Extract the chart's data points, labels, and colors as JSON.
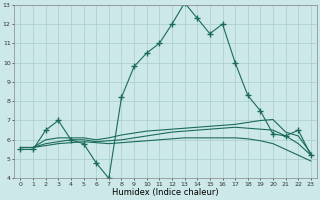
{
  "bg_color": "#cce8e8",
  "grid_color": "#aacccc",
  "line_color": "#1a6b5a",
  "marker": "+",
  "markersize": 4,
  "curve1_x": [
    0,
    1,
    2,
    3,
    4,
    5,
    6,
    7,
    8,
    9,
    10,
    11,
    12,
    13,
    14,
    15,
    16,
    17,
    18,
    19,
    20,
    21,
    22,
    23
  ],
  "curve1_y": [
    5.5,
    5.5,
    6.5,
    7.0,
    6.0,
    5.8,
    4.8,
    4.0,
    8.2,
    9.8,
    10.5,
    11.0,
    12.0,
    13.1,
    12.3,
    11.5,
    12.0,
    10.0,
    8.3,
    7.5,
    6.3,
    6.2,
    6.5,
    5.2
  ],
  "curve2_x": [
    0,
    1,
    2,
    3,
    4,
    5,
    6,
    7,
    8,
    9,
    10,
    11,
    12,
    13,
    14,
    15,
    16,
    17,
    18,
    19,
    20,
    21,
    22,
    23
  ],
  "curve2_y": [
    5.6,
    5.6,
    6.0,
    6.1,
    6.1,
    6.1,
    6.0,
    6.1,
    6.25,
    6.35,
    6.45,
    6.5,
    6.55,
    6.6,
    6.65,
    6.7,
    6.75,
    6.8,
    6.9,
    7.0,
    7.05,
    6.4,
    6.2,
    5.3
  ],
  "curve3_x": [
    0,
    1,
    2,
    3,
    4,
    5,
    6,
    7,
    8,
    9,
    10,
    11,
    12,
    13,
    14,
    15,
    16,
    17,
    18,
    19,
    20,
    21,
    22,
    23
  ],
  "curve3_y": [
    5.6,
    5.6,
    5.8,
    5.9,
    6.0,
    6.0,
    5.9,
    5.95,
    6.0,
    6.1,
    6.2,
    6.3,
    6.4,
    6.45,
    6.5,
    6.55,
    6.6,
    6.65,
    6.6,
    6.55,
    6.5,
    6.2,
    5.8,
    5.2
  ],
  "curve4_x": [
    0,
    1,
    2,
    3,
    4,
    5,
    6,
    7,
    8,
    9,
    10,
    11,
    12,
    13,
    14,
    15,
    16,
    17,
    18,
    19,
    20,
    21,
    22,
    23
  ],
  "curve4_y": [
    5.6,
    5.6,
    5.7,
    5.8,
    5.85,
    5.9,
    5.85,
    5.8,
    5.85,
    5.9,
    5.95,
    6.0,
    6.05,
    6.1,
    6.1,
    6.1,
    6.1,
    6.1,
    6.05,
    5.95,
    5.8,
    5.5,
    5.2,
    4.9
  ],
  "xlabel": "Humidex (Indice chaleur)",
  "xlim": [
    -0.5,
    23.5
  ],
  "ylim": [
    4,
    13
  ],
  "yticks": [
    4,
    5,
    6,
    7,
    8,
    9,
    10,
    11,
    12,
    13
  ],
  "xticks": [
    0,
    1,
    2,
    3,
    4,
    5,
    6,
    7,
    8,
    9,
    10,
    11,
    12,
    13,
    14,
    15,
    16,
    17,
    18,
    19,
    20,
    21,
    22,
    23
  ]
}
